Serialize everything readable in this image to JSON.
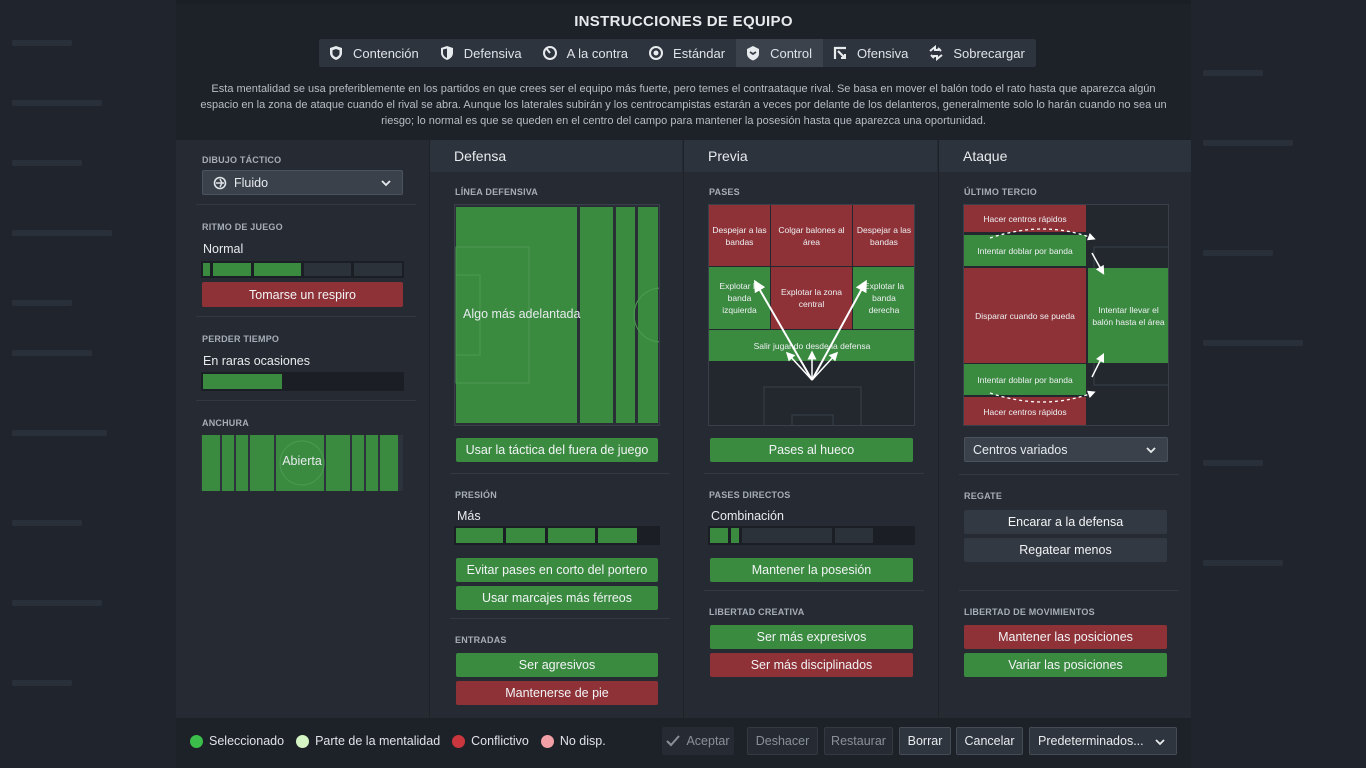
{
  "title": "INSTRUCCIONES DE EQUIPO",
  "tabs": [
    {
      "label": "Contención",
      "icon": "shield-double-icon"
    },
    {
      "label": "Defensiva",
      "icon": "shield-icon"
    },
    {
      "label": "A la contra",
      "icon": "counter-icon"
    },
    {
      "label": "Estándar",
      "icon": "balanced-icon"
    },
    {
      "label": "Control",
      "icon": "control-shield-icon"
    },
    {
      "label": "Ofensiva",
      "icon": "attack-arrow-icon"
    },
    {
      "label": "Sobrecargar",
      "icon": "overload-icon"
    }
  ],
  "active_tab": "Control",
  "description": "Esta mentalidad se usa preferiblemente en los partidos en que crees ser el equipo más fuerte, pero temes el contraataque rival. Se basa en mover el balón todo el rato hasta que aparezca algún espacio en la zona de ataque cuando el rival se abra. Aunque los laterales subirán y los centrocampistas estarán a veces por delante de los delanteros, generalmente solo lo harán cuando no sea un riesgo; lo normal es que se queden en el centro del campo para mantener la posesión hasta que aparezca una oportunidad.",
  "general": {
    "tactic_label": "DIBUJO TÁCTICO",
    "tactic_value": "Fluido",
    "tempo_label": "RITMO DE JUEGO",
    "tempo_value": "Normal",
    "tempo_level": 0.5,
    "tempo_button": "Tomarse un respiro",
    "timewaste_label": "PERDER TIEMPO",
    "timewaste_value": "En raras ocasiones",
    "timewaste_level": 0.4,
    "width_label": "ANCHURA",
    "width_value": "Abierta"
  },
  "defense": {
    "header": "Defensa",
    "line_label": "LÍNEA DEFENSIVA",
    "line_value": "Algo más adelantada",
    "offside_button": "Usar la táctica del fuera de juego",
    "press_label": "PRESIÓN",
    "press_value": "Más",
    "press_level": 0.8,
    "buttons": [
      "Evitar pases en corto del portero",
      "Usar marcajes más férreos"
    ],
    "tackle_label": "ENTRADAS",
    "tackle_buttons": [
      "Ser agresivos",
      "Mantenerse de pie"
    ]
  },
  "buildup": {
    "header": "Previa",
    "pass_label": "PASES",
    "cells": {
      "despejar_izq": "Despejar a las bandas",
      "colgar": "Colgar balones al área",
      "despejar_der": "Despejar a las bandas",
      "explotar_izq": "Explotar la banda izquierda",
      "explotar_centro": "Explotar la zona central",
      "explotar_der": "Explotar la banda derecha",
      "salir": "Salir jugando desde la defensa"
    },
    "hueco_button": "Pases al hueco",
    "direct_label": "PASES DIRECTOS",
    "direct_value": "Combinación",
    "direct_level": 0.2,
    "possession_button": "Mantener la posesión",
    "creative_label": "LIBERTAD CREATIVA",
    "creative_buttons": [
      "Ser más expresivos",
      "Ser más disciplinados"
    ]
  },
  "attack": {
    "header": "Ataque",
    "third_label": "ÚLTIMO TERCIO",
    "cells": {
      "centros_top": "Hacer centros rápidos",
      "doblar_top": "Intentar doblar por banda",
      "disparar": "Disparar cuando se pueda",
      "llevar": "Intentar llevar el balón hasta el área",
      "doblar_bottom": "Intentar doblar por banda",
      "centros_bottom": "Hacer centros rápidos"
    },
    "cross_select": "Centros variados",
    "dribble_label": "REGATE",
    "dribble_buttons": [
      "Encarar a la defensa",
      "Regatear menos"
    ],
    "movement_label": "LIBERTAD DE MOVIMIENTOS",
    "movement_buttons": [
      "Mantener las posiciones",
      "Variar las posiciones"
    ]
  },
  "legend": [
    {
      "label": "Seleccionado",
      "color": "#3bbf4a"
    },
    {
      "label": "Parte de la mentalidad",
      "color": "#d6f5c4"
    },
    {
      "label": "Conflictivo",
      "color": "#c9363d"
    },
    {
      "label": "No disp.",
      "color": "#f0a0a6"
    }
  ],
  "footer": {
    "accept": "Aceptar",
    "undo": "Deshacer",
    "restore": "Restaurar",
    "clear": "Borrar",
    "cancel": "Cancelar",
    "presets": "Predeterminados..."
  },
  "colors": {
    "green": "#3a8a40",
    "red": "#8e3238"
  }
}
